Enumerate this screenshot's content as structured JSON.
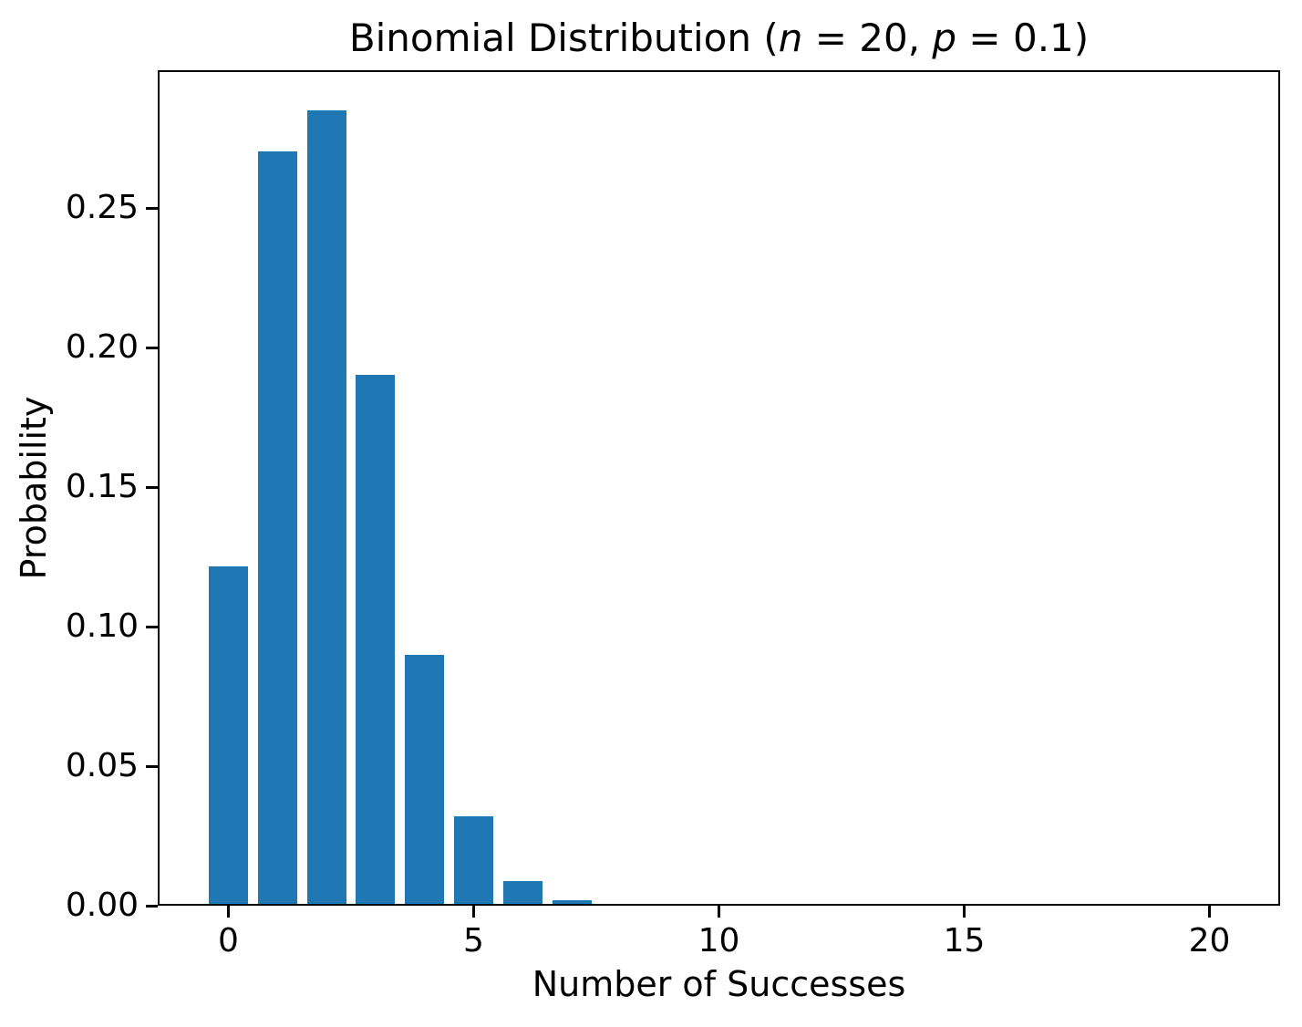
{
  "figure": {
    "background": "#ffffff"
  },
  "chart_data": {
    "type": "bar",
    "title": "Binomial Distribution (n = 20, p = 0.1)",
    "title_parts": [
      {
        "text": "Binomial Distribution (",
        "italic": false
      },
      {
        "text": "n",
        "italic": true
      },
      {
        "text": " = 20, ",
        "italic": false
      },
      {
        "text": "p",
        "italic": true
      },
      {
        "text": " = 0.1)",
        "italic": false
      }
    ],
    "xlabel": "Number of Successes",
    "ylabel": "Probability",
    "x": [
      0,
      1,
      2,
      3,
      4,
      5,
      6,
      7,
      8,
      9,
      10,
      11,
      12,
      13,
      14,
      15,
      16,
      17,
      18,
      19,
      20
    ],
    "values": [
      0.121577,
      0.27017,
      0.28518,
      0.19012,
      0.089779,
      0.031921,
      0.008867,
      0.00197,
      0.000356,
      5.3e-05,
      6e-06,
      1e-06,
      0,
      0,
      0,
      0,
      0,
      0,
      0,
      0,
      0
    ],
    "bar_color": "#1f77b4",
    "bar_width": 0.8,
    "xlim": [
      -1.44,
      21.44
    ],
    "ylim": [
      0,
      0.2994
    ],
    "xtick_values": [
      0,
      5,
      10,
      15,
      20
    ],
    "xtick_labels": [
      "0",
      "5",
      "10",
      "15",
      "20"
    ],
    "ytick_values": [
      0,
      0.05,
      0.1,
      0.15,
      0.2,
      0.25
    ],
    "ytick_labels": [
      "0.00",
      "0.05",
      "0.10",
      "0.15",
      "0.20",
      "0.25"
    ],
    "grid": false,
    "axis_color": "#000000",
    "text_color": "#000000"
  }
}
